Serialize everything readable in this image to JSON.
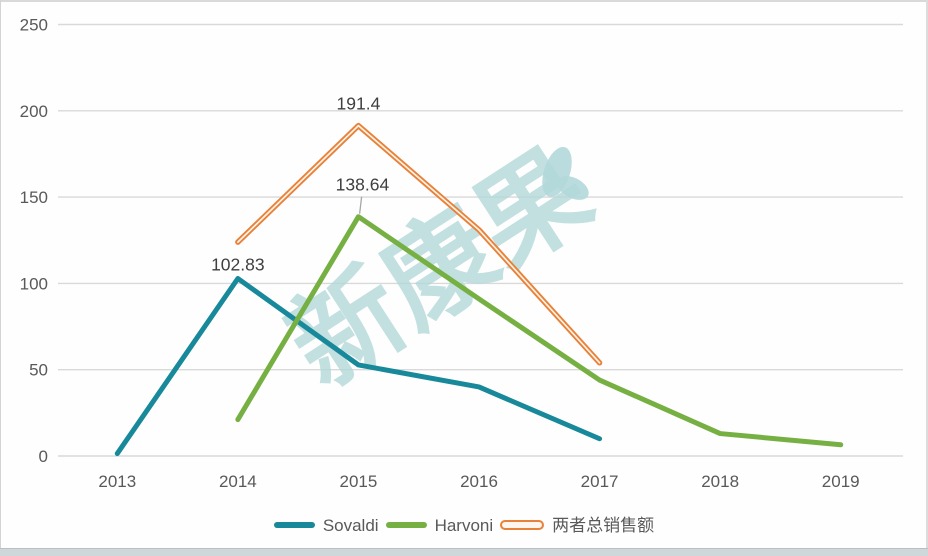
{
  "watermark": {
    "text": "新康果",
    "color": "#b3d8da"
  },
  "chart_data": {
    "type": "line",
    "x": [
      "2013",
      "2014",
      "2015",
      "2016",
      "2017",
      "2018",
      "2019"
    ],
    "ylim": [
      0,
      250
    ],
    "yticks": [
      0,
      50,
      100,
      150,
      200,
      250
    ],
    "grid": true,
    "legend_position": "bottom",
    "axis_label_color": "#595959",
    "gridline_color": "#d9d9d9",
    "series": [
      {
        "name": "Sovaldi",
        "color": "#18899a",
        "values": [
          1.4,
          102.83,
          52.76,
          40,
          10,
          null,
          null
        ]
      },
      {
        "name": "Harvoni",
        "color": "#76b043",
        "values": [
          null,
          21.1,
          138.64,
          91,
          44,
          13,
          6.5
        ]
      },
      {
        "name": "两者总销售额",
        "color": "#e8823a",
        "double_line": true,
        "values": [
          null,
          123.9,
          191.4,
          131,
          54,
          null,
          null
        ]
      }
    ],
    "data_labels": [
      {
        "series": "Sovaldi",
        "x": "2014",
        "text": "102.83"
      },
      {
        "series": "Harvoni",
        "x": "2015",
        "text": "138.64"
      },
      {
        "series": "两者总销售额",
        "x": "2015",
        "text": "191.4"
      }
    ]
  }
}
